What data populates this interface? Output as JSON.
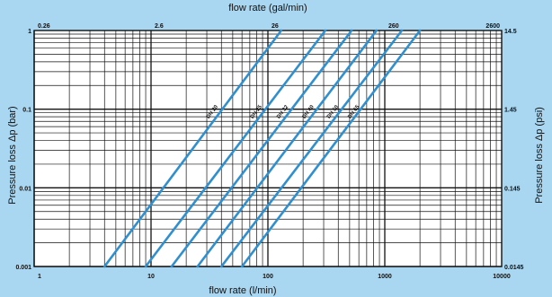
{
  "chart_data": {
    "type": "line",
    "xscale": "log",
    "yscale": "log",
    "xlabel_bottom": "flow rate (l/min)",
    "xlabel_top": "flow rate (gal/min)",
    "ylabel_left": "Pressure loss Δp (bar)",
    "ylabel_right": "Pressure loss Δp (psi)",
    "xlim": [
      1,
      10000
    ],
    "ylim": [
      0.001,
      1
    ],
    "x_ticks_bottom": [
      {
        "value": 1,
        "label": "1"
      },
      {
        "value": 10,
        "label": "10"
      },
      {
        "value": 100,
        "label": "100"
      },
      {
        "value": 1000,
        "label": "1000"
      },
      {
        "value": 10000,
        "label": "10000"
      }
    ],
    "x_ticks_top": [
      {
        "value": 1,
        "label": "0.26"
      },
      {
        "value": 10,
        "label": "2.6"
      },
      {
        "value": 100,
        "label": "26"
      },
      {
        "value": 1000,
        "label": "260"
      },
      {
        "value": 10000,
        "label": "2600"
      }
    ],
    "y_ticks_left": [
      {
        "value": 1,
        "label": "1"
      },
      {
        "value": 0.1,
        "label": "0.1"
      },
      {
        "value": 0.01,
        "label": "0.01"
      },
      {
        "value": 0.001,
        "label": "0.001"
      }
    ],
    "y_ticks_right": [
      {
        "value": 1,
        "label": "14.5"
      },
      {
        "value": 0.1,
        "label": "1.45"
      },
      {
        "value": 0.01,
        "label": "0.145"
      },
      {
        "value": 0.001,
        "label": "0.0145"
      }
    ],
    "grid": true,
    "series": [
      {
        "name": "DN 20",
        "points": [
          [
            4,
            0.001
          ],
          [
            130,
            1
          ]
        ],
        "label_at": [
          40,
          0.1
        ]
      },
      {
        "name": "DN 25",
        "points": [
          [
            9,
            0.001
          ],
          [
            310,
            1
          ]
        ],
        "label_at": [
          95,
          0.1
        ]
      },
      {
        "name": "DN 32",
        "points": [
          [
            15,
            0.001
          ],
          [
            520,
            1
          ]
        ],
        "label_at": [
          160,
          0.1
        ]
      },
      {
        "name": "DN 40",
        "points": [
          [
            25,
            0.001
          ],
          [
            850,
            1
          ]
        ],
        "label_at": [
          265,
          0.1
        ]
      },
      {
        "name": "DN 50",
        "points": [
          [
            40,
            0.001
          ],
          [
            1400,
            1
          ]
        ],
        "label_at": [
          430,
          0.1
        ]
      },
      {
        "name": "DN 65",
        "points": [
          [
            60,
            0.001
          ],
          [
            2000,
            1
          ]
        ],
        "label_at": [
          650,
          0.1
        ]
      }
    ],
    "colors": {
      "background": "#a9d6f0",
      "plot": "#ffffff",
      "grid": "#111111",
      "line": "#2f8fcf"
    }
  }
}
